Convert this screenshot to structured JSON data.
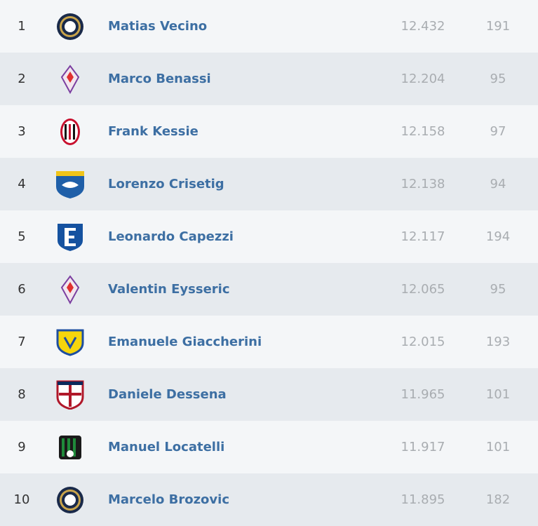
{
  "table": {
    "rows": [
      [
        "1",
        "Matias Vecino",
        "12.432",
        "191"
      ],
      [
        "2",
        "Marco Benassi",
        "12.204",
        "95"
      ],
      [
        "3",
        "Frank Kessie",
        "12.158",
        "97"
      ],
      [
        "4",
        "Lorenzo Crisetig",
        "12.138",
        "94"
      ],
      [
        "5",
        "Leonardo Capezzi",
        "12.117",
        "194"
      ],
      [
        "6",
        "Valentin Eysseric",
        "12.065",
        "95"
      ],
      [
        "7",
        "Emanuele Giaccherini",
        "12.015",
        "193"
      ],
      [
        "8",
        "Daniele Dessena",
        "11.965",
        "101"
      ],
      [
        "9",
        "Manuel Locatelli",
        "11.917",
        "101"
      ],
      [
        "10",
        "Marcelo Brozovic",
        "11.895",
        "182"
      ]
    ]
  }
}
